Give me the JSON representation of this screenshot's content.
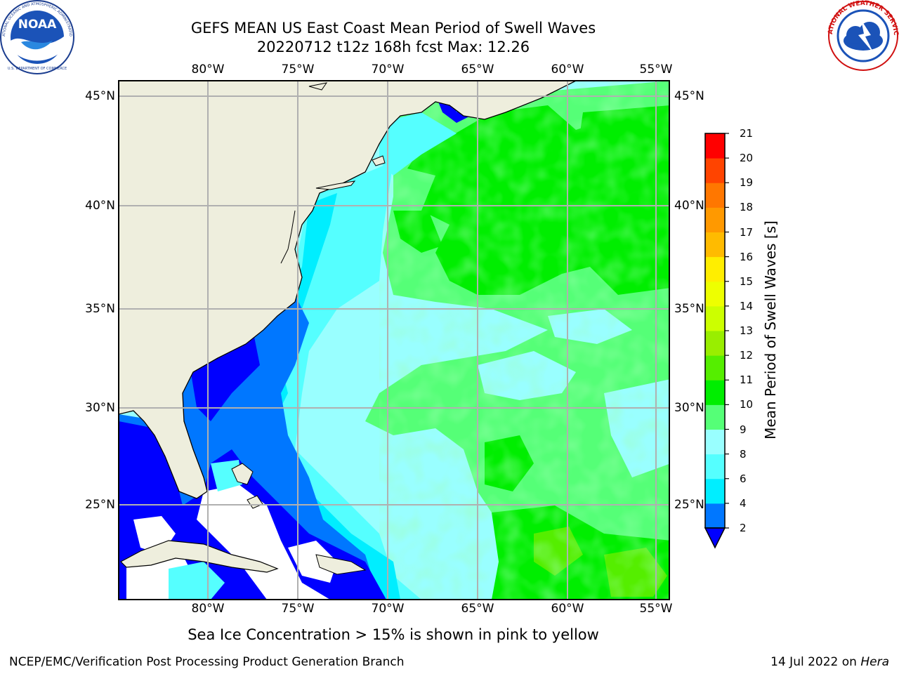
{
  "header": {
    "title_line1": "GEFS MEAN US East Coast Mean Period of Swell Waves",
    "title_line2": "20220712 t12z 168h fcst   Max: 12.26"
  },
  "logos": {
    "left": "NOAA",
    "left_ring_text": "NATIONAL OCEANIC AND ATMOSPHERIC ADMINISTRATION",
    "left_bottom_text": "U.S. DEPARTMENT OF COMMERCE",
    "right_ring_text": "NATIONAL WEATHER SERVICE"
  },
  "map": {
    "lon_labels": [
      "80°W",
      "75°W",
      "70°W",
      "65°W",
      "60°W",
      "55°W"
    ],
    "lat_labels": [
      "45°N",
      "40°N",
      "35°N",
      "30°N",
      "25°N"
    ],
    "colors": {
      "land": "#eeeedd",
      "grid": "#b0b0b0"
    }
  },
  "colorbar": {
    "title": "Mean Period of Swell Waves [s]",
    "labels": [
      "2",
      "4",
      "6",
      "8",
      "9",
      "10",
      "11",
      "12",
      "13",
      "14",
      "15",
      "16",
      "17",
      "18",
      "19",
      "20",
      "21"
    ],
    "colors": [
      "#0000ff",
      "#0077ff",
      "#00eeff",
      "#55ffff",
      "#99ffff",
      "#55ff77",
      "#00ee00",
      "#55ee00",
      "#99ee00",
      "#ccff00",
      "#eeff00",
      "#ffee00",
      "#ffbb00",
      "#ff9900",
      "#ff7700",
      "#ff4400",
      "#ff0000"
    ]
  },
  "footer": {
    "note": "Sea Ice Concentration > 15% is shown in pink to yellow",
    "credit": "NCEP/EMC/Verification Post Processing Product Generation Branch",
    "date": "14 Jul 2022 on",
    "machine": "Hera"
  }
}
